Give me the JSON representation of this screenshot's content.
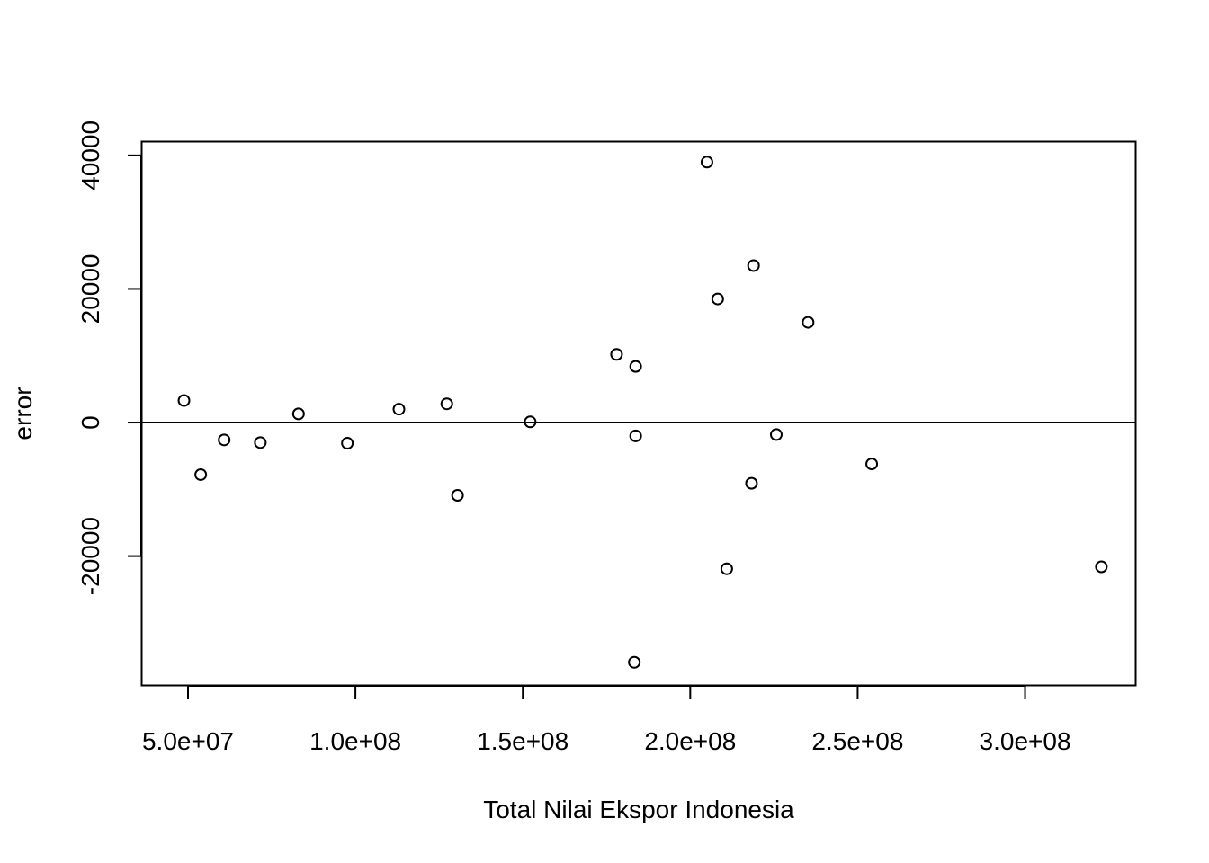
{
  "chart_data": {
    "type": "scatter",
    "xlabel": "Total Nilai Ekspor Indonesia",
    "ylabel": "error",
    "x_ticks": [
      {
        "value": 50000000,
        "label": "5.0e+07"
      },
      {
        "value": 100000000,
        "label": "1.0e+08"
      },
      {
        "value": 150000000,
        "label": "1.5e+08"
      },
      {
        "value": 200000000,
        "label": "2.0e+08"
      },
      {
        "value": 250000000,
        "label": "2.5e+08"
      },
      {
        "value": 300000000,
        "label": "3.0e+08"
      }
    ],
    "y_ticks": [
      {
        "value": -20000,
        "label": "-20000"
      },
      {
        "value": 0,
        "label": "0"
      },
      {
        "value": 20000,
        "label": "20000"
      },
      {
        "value": 40000,
        "label": "40000"
      }
    ],
    "xlim": [
      36300000,
      332900000
    ],
    "ylim": [
      -39300,
      42000
    ],
    "reference_line_y": 0,
    "grid": false,
    "legend": "none",
    "point_symbol": "open-circle",
    "points": [
      {
        "x": 48800000,
        "y": 3300
      },
      {
        "x": 53800000,
        "y": -7800
      },
      {
        "x": 60800000,
        "y": -2600
      },
      {
        "x": 71600000,
        "y": -3000
      },
      {
        "x": 83000000,
        "y": 1300
      },
      {
        "x": 97600000,
        "y": -3100
      },
      {
        "x": 113000000,
        "y": 2000
      },
      {
        "x": 127300000,
        "y": 2800
      },
      {
        "x": 130500000,
        "y": -10900
      },
      {
        "x": 152200000,
        "y": 100
      },
      {
        "x": 178000000,
        "y": 10200
      },
      {
        "x": 183300000,
        "y": -35900
      },
      {
        "x": 183700000,
        "y": 8400
      },
      {
        "x": 183700000,
        "y": -2000
      },
      {
        "x": 205000000,
        "y": 39000
      },
      {
        "x": 208200000,
        "y": 18500
      },
      {
        "x": 210900000,
        "y": -21900
      },
      {
        "x": 218300000,
        "y": -9100
      },
      {
        "x": 218900000,
        "y": 23500
      },
      {
        "x": 225700000,
        "y": -1800
      },
      {
        "x": 235200000,
        "y": 15000
      },
      {
        "x": 254200000,
        "y": -6200
      },
      {
        "x": 322800000,
        "y": -21600
      }
    ]
  }
}
